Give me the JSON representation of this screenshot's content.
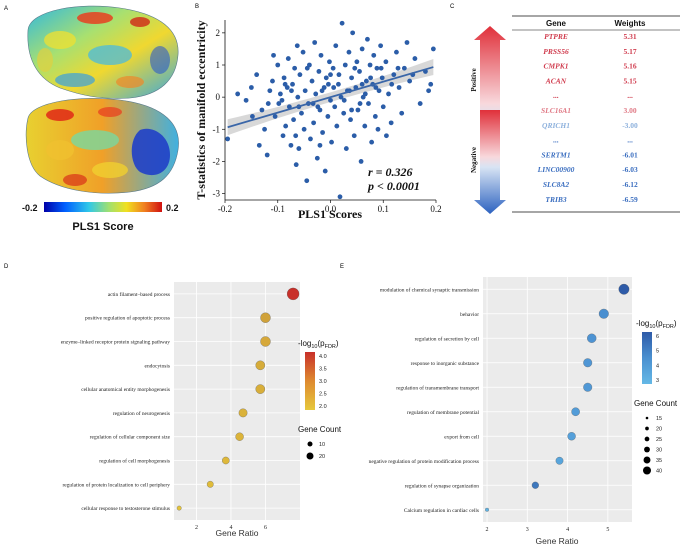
{
  "panels": {
    "a": "A",
    "b": "B",
    "c": "C",
    "d": "D",
    "e": "E"
  },
  "panel_a": {
    "colorbar_min": "-0.2",
    "colorbar_max": "0.2",
    "colorbar_title": "PLS1 Score",
    "colors": [
      "#0000a8",
      "#0060ff",
      "#30c8e8",
      "#a0e070",
      "#f0e020",
      "#f08020",
      "#d01010"
    ]
  },
  "chart_data": [
    {
      "id": "scatter",
      "type": "scatter",
      "title": "",
      "xlabel": "PLS1 Scores",
      "ylabel": "T-statistics of  manifold eccentricity",
      "xlim": [
        -0.2,
        0.2
      ],
      "ylim": [
        -3.2,
        2.4
      ],
      "xticks": [
        "-0.2",
        "-0.1",
        "0.0",
        "0.1",
        "0.2"
      ],
      "xtick_values": [
        -0.2,
        -0.1,
        0.0,
        0.1,
        0.2
      ],
      "yticks": [
        "-3",
        "-2",
        "-1",
        "0",
        "1",
        "2"
      ],
      "ytick_values": [
        -3,
        -2,
        -1,
        0,
        1,
        2
      ],
      "annotation_r": "r = 0.326",
      "annotation_p": "p < 0.0001",
      "fit": {
        "slope": 4.8,
        "intercept": 0.0
      },
      "point_color": "#2b5da8",
      "line_color": "#3a66a8",
      "points": [
        [
          -0.195,
          -1.3
        ],
        [
          -0.16,
          -0.1
        ],
        [
          -0.15,
          0.3
        ],
        [
          -0.14,
          0.7
        ],
        [
          -0.13,
          -0.4
        ],
        [
          -0.125,
          -1.0
        ],
        [
          -0.12,
          -1.8
        ],
        [
          -0.115,
          0.2
        ],
        [
          -0.11,
          0.5
        ],
        [
          -0.105,
          -0.6
        ],
        [
          -0.1,
          1.0
        ],
        [
          -0.098,
          -0.2
        ],
        [
          -0.095,
          0.1
        ],
        [
          -0.09,
          -1.2
        ],
        [
          -0.088,
          0.6
        ],
        [
          -0.085,
          -0.9
        ],
        [
          -0.082,
          0.3
        ],
        [
          -0.08,
          1.2
        ],
        [
          -0.078,
          -0.3
        ],
        [
          -0.075,
          -1.5
        ],
        [
          -0.072,
          0.4
        ],
        [
          -0.07,
          -0.7
        ],
        [
          -0.068,
          0.9
        ],
        [
          -0.065,
          -2.1
        ],
        [
          -0.062,
          0.0
        ],
        [
          -0.06,
          -1.6
        ],
        [
          -0.058,
          0.7
        ],
        [
          -0.055,
          -0.5
        ],
        [
          -0.052,
          1.4
        ],
        [
          -0.05,
          -1.0
        ],
        [
          -0.048,
          0.2
        ],
        [
          -0.045,
          -2.6
        ],
        [
          -0.042,
          -0.2
        ],
        [
          -0.04,
          1.0
        ],
        [
          -0.038,
          -1.3
        ],
        [
          -0.035,
          0.5
        ],
        [
          -0.032,
          -0.8
        ],
        [
          -0.03,
          1.7
        ],
        [
          -0.028,
          0.1
        ],
        [
          -0.025,
          -1.9
        ],
        [
          -0.022,
          0.8
        ],
        [
          -0.02,
          -0.4
        ],
        [
          -0.018,
          1.3
        ],
        [
          -0.015,
          -1.1
        ],
        [
          -0.012,
          0.3
        ],
        [
          -0.01,
          -2.3
        ],
        [
          -0.008,
          0.6
        ],
        [
          -0.005,
          -0.6
        ],
        [
          -0.002,
          1.1
        ],
        [
          0.0,
          -0.1
        ],
        [
          0.002,
          -1.4
        ],
        [
          0.005,
          0.9
        ],
        [
          0.008,
          -0.3
        ],
        [
          0.01,
          1.6
        ],
        [
          0.012,
          -0.9
        ],
        [
          0.015,
          0.4
        ],
        [
          0.018,
          -3.1
        ],
        [
          0.02,
          0.0
        ],
        [
          0.022,
          2.3
        ],
        [
          0.025,
          -0.5
        ],
        [
          0.028,
          1.0
        ],
        [
          0.03,
          -1.6
        ],
        [
          0.032,
          0.2
        ],
        [
          0.035,
          1.4
        ],
        [
          0.038,
          -0.7
        ],
        [
          0.04,
          0.6
        ],
        [
          0.042,
          2.0
        ],
        [
          0.045,
          -1.2
        ],
        [
          0.048,
          0.3
        ],
        [
          0.05,
          1.1
        ],
        [
          0.052,
          -0.4
        ],
        [
          0.055,
          0.8
        ],
        [
          0.058,
          -2.0
        ],
        [
          0.06,
          1.5
        ],
        [
          0.062,
          0.0
        ],
        [
          0.065,
          -0.9
        ],
        [
          0.068,
          0.5
        ],
        [
          0.07,
          1.8
        ],
        [
          0.072,
          -0.2
        ],
        [
          0.075,
          1.0
        ],
        [
          0.078,
          -1.4
        ],
        [
          0.08,
          0.4
        ],
        [
          0.082,
          1.3
        ],
        [
          0.085,
          -0.6
        ],
        [
          0.088,
          0.9
        ],
        [
          0.09,
          -1.0
        ],
        [
          0.092,
          0.2
        ],
        [
          0.095,
          1.6
        ],
        [
          0.098,
          0.6
        ],
        [
          0.1,
          -0.3
        ],
        [
          0.105,
          1.1
        ],
        [
          0.11,
          0.1
        ],
        [
          0.115,
          -0.8
        ],
        [
          0.12,
          0.7
        ],
        [
          0.125,
          1.4
        ],
        [
          0.13,
          0.3
        ],
        [
          0.135,
          -0.5
        ],
        [
          0.14,
          0.9
        ],
        [
          0.145,
          1.7
        ],
        [
          0.15,
          0.5
        ],
        [
          0.16,
          1.2
        ],
        [
          0.17,
          -0.2
        ],
        [
          0.18,
          0.8
        ],
        [
          0.19,
          0.4
        ],
        [
          0.195,
          1.5
        ],
        [
          -0.135,
          -1.5
        ],
        [
          -0.108,
          1.3
        ],
        [
          -0.092,
          -0.1
        ],
        [
          -0.063,
          1.6
        ],
        [
          -0.033,
          -0.2
        ],
        [
          -0.016,
          0.2
        ],
        [
          0.006,
          0.3
        ],
        [
          0.026,
          -0.1
        ],
        [
          0.046,
          0.9
        ],
        [
          0.066,
          0.1
        ],
        [
          0.086,
          0.3
        ],
        [
          0.106,
          -1.2
        ],
        [
          0.128,
          0.9
        ],
        [
          -0.176,
          0.1
        ],
        [
          -0.148,
          -0.6
        ],
        [
          -0.118,
          -0.2
        ],
        [
          -0.074,
          0.2
        ],
        [
          -0.044,
          0.9
        ],
        [
          -0.024,
          -0.3
        ],
        [
          -0.004,
          0.4
        ],
        [
          0.016,
          0.7
        ],
        [
          0.036,
          0.2
        ],
        [
          0.056,
          -0.2
        ],
        [
          0.076,
          0.6
        ],
        [
          0.096,
          0.9
        ],
        [
          0.116,
          0.4
        ],
        [
          0.156,
          0.7
        ],
        [
          0.186,
          0.2
        ],
        [
          -0.06,
          -0.3
        ],
        [
          -0.02,
          -1.5
        ],
        [
          0.0,
          0.7
        ],
        [
          0.04,
          -0.4
        ],
        [
          0.06,
          0.4
        ],
        [
          -0.086,
          0.4
        ],
        [
          -0.066,
          -1.2
        ]
      ]
    },
    {
      "id": "enrich_d",
      "type": "scatter",
      "title": "",
      "xlabel": "Gene Ratio",
      "ylabel": "",
      "xlim": [
        0.7,
        8.0
      ],
      "xticks": [
        "2",
        "4",
        "6"
      ],
      "xtick_values": [
        2,
        4,
        6
      ],
      "legend_color_title": "-log10(pFDR)",
      "legend_color_ticks": [
        "4.0",
        "3.5",
        "3.0",
        "2.5",
        "2.0"
      ],
      "legend_size_title": "Gene Count",
      "legend_size_ticks": [
        "10",
        "20"
      ],
      "terms": [
        {
          "label": "actin filament–based process",
          "x": 7.6,
          "color": "#c8302a",
          "size": 6.0
        },
        {
          "label": "positive regulation of apoptotic process",
          "x": 6.0,
          "color": "#d0a23a",
          "size": 5.0
        },
        {
          "label": "enzyme–linked receptor protein signaling pathway",
          "x": 6.0,
          "color": "#d6a83a",
          "size": 5.0
        },
        {
          "label": "endocytosis",
          "x": 5.7,
          "color": "#d6ac3a",
          "size": 4.6
        },
        {
          "label": "cellular anatomical entity morphogenesis",
          "x": 5.7,
          "color": "#d8ae3a",
          "size": 4.6
        },
        {
          "label": "regulation of neurogenesis",
          "x": 4.7,
          "color": "#dab23a",
          "size": 4.2
        },
        {
          "label": "regulation of cellular component size",
          "x": 4.5,
          "color": "#dcb43a",
          "size": 4.0
        },
        {
          "label": "regulation of cell morphogenesis",
          "x": 3.7,
          "color": "#deb83a",
          "size": 3.6
        },
        {
          "label": "regulation of protein localization to cell periphery",
          "x": 2.8,
          "color": "#e0bc3a",
          "size": 3.2
        },
        {
          "label": "cellular response to testosterone stimulus",
          "x": 1.0,
          "color": "#e2c23c",
          "size": 2.2
        }
      ]
    },
    {
      "id": "enrich_e",
      "type": "scatter",
      "title": "",
      "xlabel": "Gene Ratio",
      "ylabel": "",
      "xlim": [
        1.9,
        5.6
      ],
      "xticks": [
        "2",
        "3",
        "4",
        "5"
      ],
      "xtick_values": [
        2,
        3,
        4,
        5
      ],
      "legend_color_title": "-log10(pFDR)",
      "legend_color_ticks": [
        "6",
        "5",
        "4",
        "3"
      ],
      "legend_size_title": "Gene Count",
      "legend_size_ticks": [
        "15",
        "20",
        "25",
        "30",
        "35",
        "40"
      ],
      "terms": [
        {
          "label": "modulation of chemical synaptic transmission",
          "x": 5.4,
          "color": "#2e5ba8",
          "size": 5.2
        },
        {
          "label": "behavior",
          "x": 4.9,
          "color": "#4a8fd0",
          "size": 4.8
        },
        {
          "label": "regulation of secretion by cell",
          "x": 4.6,
          "color": "#4d93d3",
          "size": 4.5
        },
        {
          "label": "response to inorganic substance",
          "x": 4.5,
          "color": "#4f96d5",
          "size": 4.3
        },
        {
          "label": "regulation of transmembrane transport",
          "x": 4.5,
          "color": "#5098d6",
          "size": 4.3
        },
        {
          "label": "regulation of membrane potential",
          "x": 4.2,
          "color": "#529cd8",
          "size": 4.1
        },
        {
          "label": "export from cell",
          "x": 4.1,
          "color": "#55a0da",
          "size": 4.0
        },
        {
          "label": "negative regulation of protein modification process",
          "x": 3.8,
          "color": "#58a5dc",
          "size": 3.7
        },
        {
          "label": "regulation of synapse organization",
          "x": 3.2,
          "color": "#3e78bd",
          "size": 3.4
        },
        {
          "label": "Calcium regulation in cardiac cells",
          "x": 2.0,
          "color": "#5fb2e2",
          "size": 1.8
        }
      ]
    }
  ],
  "table": {
    "col_gene": "Gene",
    "col_weight": "Weights",
    "positive_label": "Positive",
    "negative_label": "Negative",
    "rows": [
      {
        "gene": "PTPRE",
        "weight": "5.31",
        "color": "#d03c4e"
      },
      {
        "gene": "PRSS56",
        "weight": "5.17",
        "color": "#d03c4e"
      },
      {
        "gene": "CMPK1",
        "weight": "5.16",
        "color": "#d03c4e"
      },
      {
        "gene": "ACAN",
        "weight": "5.15",
        "color": "#d03c4e"
      },
      {
        "gene": "...",
        "weight": "...",
        "color": "#d03c4e"
      },
      {
        "gene": "SLC16A1",
        "weight": "3.00",
        "color": "#e07a86"
      },
      {
        "gene": "QRICH1",
        "weight": "-3.00",
        "color": "#8cb0dc"
      },
      {
        "gene": "...",
        "weight": "...",
        "color": "#3c6fc0"
      },
      {
        "gene": "SERTM1",
        "weight": "-6.01",
        "color": "#3c6fc0"
      },
      {
        "gene": "LINC00900",
        "weight": "-6.03",
        "color": "#3c6fc0"
      },
      {
        "gene": "SLC8A2",
        "weight": "-6.12",
        "color": "#3c6fc0"
      },
      {
        "gene": "TRIB3",
        "weight": "-6.59",
        "color": "#3c6fc0"
      }
    ]
  }
}
